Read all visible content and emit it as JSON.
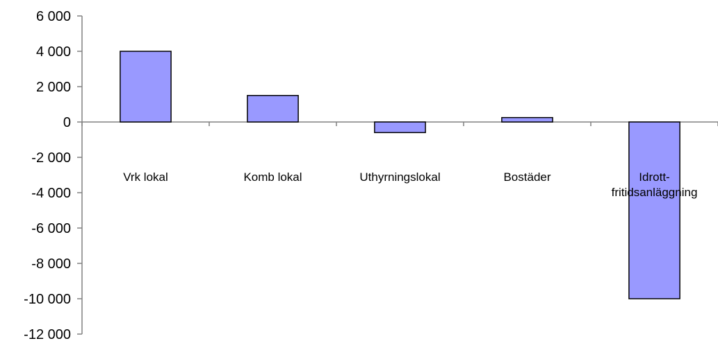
{
  "chart_data": {
    "type": "bar",
    "title": "",
    "xlabel": "",
    "ylabel": "",
    "categories": [
      [
        "Vrk lokal"
      ],
      [
        "Komb lokal"
      ],
      [
        "Uthyrningslokal"
      ],
      [
        "Bostäder"
      ],
      [
        "Idrott-",
        "fritidsanläggning"
      ]
    ],
    "values": [
      4000,
      1500,
      -600,
      250,
      -10000
    ],
    "ylim": [
      -12000,
      6000
    ],
    "yticks": [
      6000,
      4000,
      2000,
      0,
      -2000,
      -4000,
      -6000,
      -8000,
      -10000,
      -12000
    ],
    "ytick_labels": [
      "6 000",
      "4 000",
      "2 000",
      "0",
      "-2 000",
      "-4 000",
      "-6 000",
      "-8 000",
      "-10 000",
      "-12 000"
    ],
    "grid": false,
    "legend": "none",
    "bar_color": "#9999ff"
  }
}
